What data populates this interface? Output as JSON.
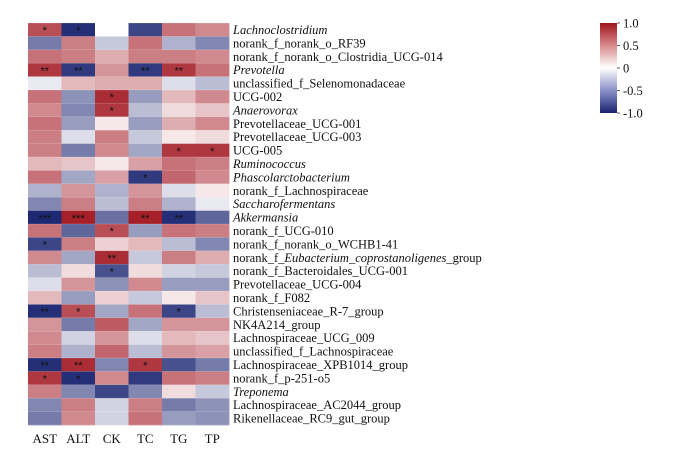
{
  "chart_data": {
    "type": "heatmap",
    "columns": [
      "AST",
      "ALT",
      "CK",
      "TC",
      "TG",
      "TP"
    ],
    "rows": [
      {
        "label": "Lachnoclostridium",
        "italic": true,
        "values": [
          0.75,
          -0.95,
          0.0,
          -0.85,
          0.6,
          0.5
        ],
        "stars": [
          "*",
          "*",
          "",
          "",
          "",
          ""
        ]
      },
      {
        "label": "norank_f_norank_o_RF39",
        "italic": false,
        "values": [
          -0.6,
          0.55,
          -0.25,
          0.6,
          -0.35,
          -0.55
        ],
        "stars": [
          "",
          "",
          "",
          "",
          "",
          ""
        ]
      },
      {
        "label": "norank_f_norank_o_Clostridia_UCG-014",
        "italic": false,
        "values": [
          0.6,
          0.55,
          0.35,
          0.55,
          0.55,
          0.5
        ],
        "stars": [
          "",
          "",
          "",
          "",
          "",
          ""
        ]
      },
      {
        "label": "Prevotella",
        "italic": true,
        "values": [
          0.85,
          -0.9,
          0.45,
          -0.9,
          0.85,
          0.6
        ],
        "stars": [
          "**",
          "**",
          "",
          "**",
          "**",
          ""
        ]
      },
      {
        "label": "unclassified_f_Selenomonadaceae",
        "italic": false,
        "values": [
          -0.1,
          0.3,
          0.35,
          0.35,
          -0.15,
          -0.3
        ],
        "stars": [
          "",
          "",
          "",
          "",
          "",
          ""
        ]
      },
      {
        "label": "UCG-002",
        "italic": false,
        "values": [
          0.6,
          -0.5,
          0.9,
          -0.45,
          0.3,
          0.5
        ],
        "stars": [
          "",
          "",
          "*",
          "",
          "",
          ""
        ]
      },
      {
        "label": "Anaerovorax",
        "italic": true,
        "values": [
          0.5,
          -0.55,
          0.85,
          -0.3,
          0.15,
          0.25
        ],
        "stars": [
          "",
          "",
          "*",
          "",
          "",
          ""
        ]
      },
      {
        "label": "Prevotellaceae_UCG-001",
        "italic": false,
        "values": [
          0.6,
          -0.45,
          0.1,
          -0.45,
          0.35,
          0.5
        ],
        "stars": [
          "",
          "",
          "",
          "",
          "",
          ""
        ]
      },
      {
        "label": "Prevotellaceae_UCG-003",
        "italic": false,
        "values": [
          0.55,
          -0.15,
          0.55,
          -0.25,
          0.1,
          0.15
        ],
        "stars": [
          "",
          "",
          "",
          "",
          "",
          ""
        ]
      },
      {
        "label": "UCG-005",
        "italic": false,
        "values": [
          0.55,
          -0.6,
          0.5,
          -0.4,
          0.85,
          0.85
        ],
        "stars": [
          "",
          "",
          "",
          "",
          "*",
          "*"
        ]
      },
      {
        "label": "Ruminococcus",
        "italic": true,
        "values": [
          0.3,
          0.25,
          0.1,
          0.4,
          0.6,
          0.55
        ],
        "stars": [
          "",
          "",
          "",
          "",
          "",
          ""
        ]
      },
      {
        "label": "Phascolarctobacterium",
        "italic": true,
        "values": [
          0.6,
          -0.4,
          0.4,
          -0.9,
          0.65,
          0.5
        ],
        "stars": [
          "",
          "",
          "",
          "*",
          "",
          ""
        ]
      },
      {
        "label": "norank_f_Lachnospiraceae",
        "italic": false,
        "values": [
          -0.35,
          0.45,
          -0.35,
          0.45,
          -0.15,
          0.1
        ],
        "stars": [
          "",
          "",
          "",
          "",
          "",
          ""
        ]
      },
      {
        "label": "Saccharofermentans",
        "italic": true,
        "values": [
          -0.55,
          0.55,
          -0.3,
          0.55,
          -0.35,
          -0.1
        ],
        "stars": [
          "",
          "",
          "",
          "",
          "",
          ""
        ]
      },
      {
        "label": "Akkermansia",
        "italic": true,
        "values": [
          -0.98,
          0.95,
          -0.65,
          0.95,
          -0.95,
          -0.7
        ],
        "stars": [
          "***",
          "***",
          "",
          "**",
          "**",
          ""
        ]
      },
      {
        "label": "norank_f_UCG-010",
        "italic": false,
        "values": [
          0.6,
          -0.7,
          0.75,
          -0.45,
          0.6,
          0.55
        ],
        "stars": [
          "",
          "",
          "*",
          "",
          "",
          ""
        ]
      },
      {
        "label": "norank_f_norank_o_WCHB1-41",
        "italic": false,
        "values": [
          -0.85,
          0.55,
          0.2,
          0.3,
          -0.3,
          -0.55
        ],
        "stars": [
          "*",
          "",
          "",
          "",
          "",
          ""
        ]
      },
      {
        "label": "norank_f_Eubacterium_coprostanoligenes_group",
        "italic": false,
        "italicPart": "Eubacterium_coprostanoligenes",
        "values": [
          0.5,
          -0.4,
          0.9,
          -0.25,
          0.55,
          0.35
        ],
        "stars": [
          "",
          "",
          "**",
          "",
          "",
          ""
        ]
      },
      {
        "label": "norank_f_Bacteroidales_UCG-001",
        "italic": false,
        "values": [
          -0.3,
          0.15,
          -0.8,
          0.15,
          -0.2,
          -0.25
        ],
        "stars": [
          "",
          "",
          "*",
          "",
          "",
          ""
        ]
      },
      {
        "label": "Prevotellaceae_UCG-004",
        "italic": false,
        "values": [
          -0.15,
          0.45,
          -0.5,
          0.5,
          -0.45,
          -0.45
        ],
        "stars": [
          "",
          "",
          "",
          "",
          "",
          ""
        ]
      },
      {
        "label": "norank_f_F082",
        "italic": false,
        "values": [
          0.3,
          -0.45,
          0.2,
          -0.25,
          0.1,
          0.25
        ],
        "stars": [
          "",
          "",
          "",
          "",
          "",
          ""
        ]
      },
      {
        "label": "Christenseniaceae_R-7_group",
        "italic": false,
        "values": [
          -0.95,
          0.75,
          -0.4,
          0.6,
          -0.85,
          -0.3
        ],
        "stars": [
          "**",
          "*",
          "",
          "",
          "*",
          ""
        ]
      },
      {
        "label": "NK4A214_group",
        "italic": false,
        "values": [
          0.45,
          -0.6,
          0.7,
          -0.4,
          0.45,
          0.45
        ],
        "stars": [
          "",
          "",
          "",
          "",
          "",
          ""
        ]
      },
      {
        "label": "Lachnospiraceae_UCG_009",
        "italic": false,
        "values": [
          0.5,
          -0.2,
          0.45,
          -0.15,
          0.3,
          0.25
        ],
        "stars": [
          "",
          "",
          "",
          "",
          "",
          ""
        ]
      },
      {
        "label": "unclassified_f_Lachnospiraceae",
        "italic": false,
        "values": [
          0.55,
          -0.35,
          0.65,
          -0.3,
          0.45,
          0.4
        ],
        "stars": [
          "",
          "",
          "",
          "",
          "",
          ""
        ]
      },
      {
        "label": "Lachnospiraceae_XPB1014_group",
        "italic": false,
        "values": [
          -0.95,
          0.9,
          -0.55,
          0.85,
          -0.8,
          -0.6
        ],
        "stars": [
          "**",
          "**",
          "",
          "*",
          "",
          ""
        ]
      },
      {
        "label": "norank_f_p-251-o5",
        "italic": false,
        "values": [
          0.85,
          -0.95,
          0.5,
          -0.9,
          0.6,
          0.55
        ],
        "stars": [
          "*",
          "*",
          "",
          "",
          "",
          ""
        ]
      },
      {
        "label": "Treponema",
        "italic": true,
        "values": [
          0.55,
          -0.55,
          -0.85,
          -0.55,
          0.15,
          -0.25
        ],
        "stars": [
          "",
          "",
          "",
          "",
          "",
          ""
        ]
      },
      {
        "label": "Lachnospiraceae_AC2044_group",
        "italic": false,
        "values": [
          -0.55,
          0.55,
          -0.2,
          0.55,
          -0.6,
          -0.5
        ],
        "stars": [
          "",
          "",
          "",
          "",
          "",
          ""
        ]
      },
      {
        "label": "Rikenellaceae_RC9_gut_group",
        "italic": false,
        "values": [
          -0.6,
          0.5,
          -0.2,
          0.6,
          -0.45,
          -0.5
        ],
        "stars": [
          "",
          "",
          "",
          "",
          "",
          ""
        ]
      }
    ],
    "colorbar": {
      "min": -1.0,
      "max": 1.0,
      "ticks": [
        "1.0",
        "0.5",
        "0",
        "-0.5",
        "-1.0"
      ],
      "tick_values": [
        1.0,
        0.5,
        0,
        -0.5,
        -1.0
      ],
      "colors": {
        "low": "#1a2470",
        "mid": "#ffffff",
        "high": "#a0141e"
      }
    }
  }
}
